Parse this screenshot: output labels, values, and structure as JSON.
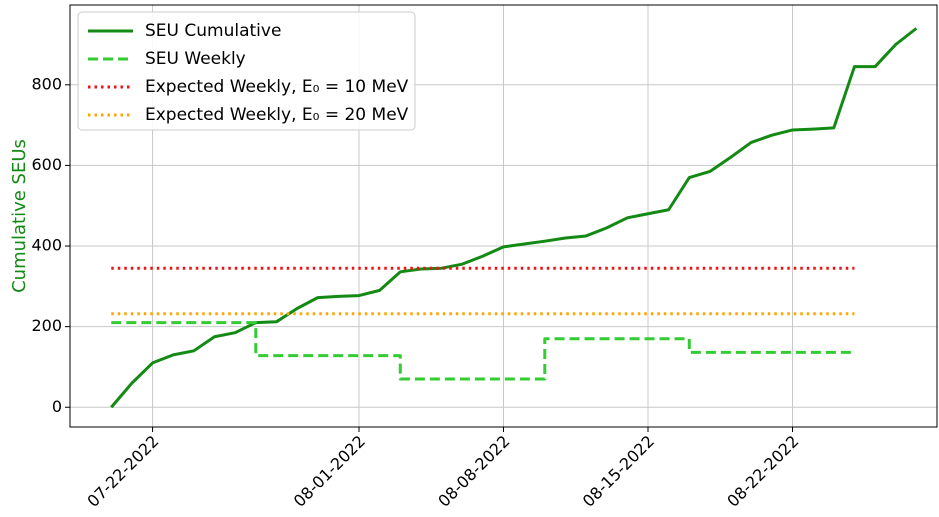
{
  "chart_data": {
    "type": "line",
    "ylabel": "Cumulative SEUs",
    "ylabel_color": "#138a13",
    "xlim": [
      "2022-07-18",
      "2022-08-29"
    ],
    "ylim": [
      -49,
      998
    ],
    "xticks": [
      {
        "value": "2022-07-22",
        "label": "07-22-2022"
      },
      {
        "value": "2022-08-01",
        "label": "08-01-2022"
      },
      {
        "value": "2022-08-08",
        "label": "08-08-2022"
      },
      {
        "value": "2022-08-15",
        "label": "08-15-2022"
      },
      {
        "value": "2022-08-22",
        "label": "08-22-2022"
      }
    ],
    "yticks": [
      0,
      200,
      400,
      600,
      800
    ],
    "grid": true,
    "legend": "upper left",
    "series": [
      {
        "name": "SEU Cumulative",
        "color": "#138a13",
        "style": "solid",
        "step": false,
        "x": [
          "2022-07-20",
          "2022-07-21",
          "2022-07-22",
          "2022-07-23",
          "2022-07-24",
          "2022-07-25",
          "2022-07-26",
          "2022-07-27",
          "2022-07-28",
          "2022-07-29",
          "2022-07-30",
          "2022-07-31",
          "2022-08-01",
          "2022-08-02",
          "2022-08-03",
          "2022-08-04",
          "2022-08-05",
          "2022-08-06",
          "2022-08-07",
          "2022-08-08",
          "2022-08-09",
          "2022-08-10",
          "2022-08-11",
          "2022-08-12",
          "2022-08-13",
          "2022-08-14",
          "2022-08-15",
          "2022-08-16",
          "2022-08-17",
          "2022-08-18",
          "2022-08-19",
          "2022-08-20",
          "2022-08-21",
          "2022-08-22",
          "2022-08-23",
          "2022-08-24",
          "2022-08-25",
          "2022-08-26",
          "2022-08-27",
          "2022-08-28"
        ],
        "values": [
          0,
          60,
          110,
          130,
          140,
          175,
          185,
          210,
          212,
          245,
          272,
          275,
          277,
          290,
          336,
          343,
          345,
          355,
          375,
          398,
          405,
          412,
          420,
          425,
          445,
          470,
          480,
          490,
          570,
          585,
          620,
          657,
          675,
          688,
          690,
          693,
          845,
          845,
          900,
          940
        ]
      },
      {
        "name": "SEU Weekly",
        "color": "#33cc33",
        "style": "dashed",
        "step": true,
        "x": [
          "2022-07-20",
          "2022-07-27",
          "2022-08-03",
          "2022-08-10",
          "2022-08-17",
          "2022-08-25"
        ],
        "values": [
          210,
          128,
          70,
          170,
          136,
          136
        ]
      },
      {
        "name": "Expected Weekly, E₀ = 10 MeV",
        "color": "#ee1111",
        "style": "dotted",
        "step": false,
        "x": [
          "2022-07-20",
          "2022-08-25"
        ],
        "values": [
          345,
          345
        ]
      },
      {
        "name": "Expected Weekly, E₀ = 20 MeV",
        "color": "#ffa500",
        "style": "dotted",
        "step": false,
        "x": [
          "2022-07-20",
          "2022-08-25"
        ],
        "values": [
          232,
          232
        ]
      }
    ]
  }
}
